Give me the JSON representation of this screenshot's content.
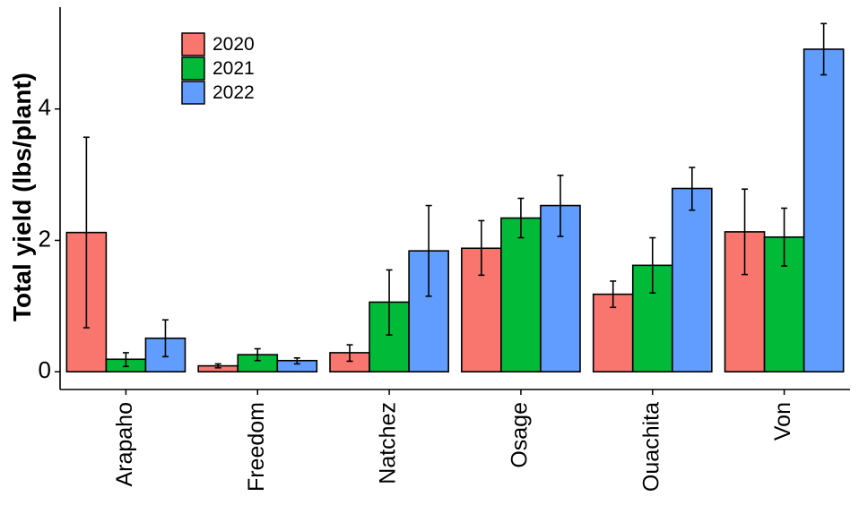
{
  "chart_data": {
    "type": "bar",
    "title": "",
    "xlabel": "",
    "ylabel": "Total yield (lbs/plant)",
    "categories": [
      "Arapaho",
      "Freedom",
      "Natchez",
      "Osage",
      "Ouachita",
      "Von"
    ],
    "series": [
      {
        "name": "2020",
        "color": "#F8766D",
        "values": [
          2.12,
          0.09,
          0.29,
          1.88,
          1.18,
          2.13
        ],
        "err_low": [
          0.67,
          0.06,
          0.16,
          1.47,
          0.98,
          1.48
        ],
        "err_high": [
          3.57,
          0.12,
          0.41,
          2.3,
          1.38,
          2.78
        ]
      },
      {
        "name": "2021",
        "color": "#00BA38",
        "values": [
          0.19,
          0.26,
          1.06,
          2.34,
          1.62,
          2.05
        ],
        "err_low": [
          0.08,
          0.17,
          0.56,
          2.04,
          1.2,
          1.61
        ],
        "err_high": [
          0.29,
          0.35,
          1.55,
          2.64,
          2.04,
          2.49
        ]
      },
      {
        "name": "2022",
        "color": "#619CFF",
        "values": [
          0.51,
          0.17,
          1.84,
          2.53,
          2.79,
          4.91
        ],
        "err_low": [
          0.23,
          0.12,
          1.15,
          2.06,
          2.46,
          4.52
        ],
        "err_high": [
          0.79,
          0.21,
          2.53,
          2.99,
          3.11,
          5.3
        ]
      }
    ],
    "ylim": [
      -0.27,
      5.55
    ],
    "yticks": [
      0,
      2,
      4
    ],
    "grid": false,
    "legend_position": "top-left"
  }
}
